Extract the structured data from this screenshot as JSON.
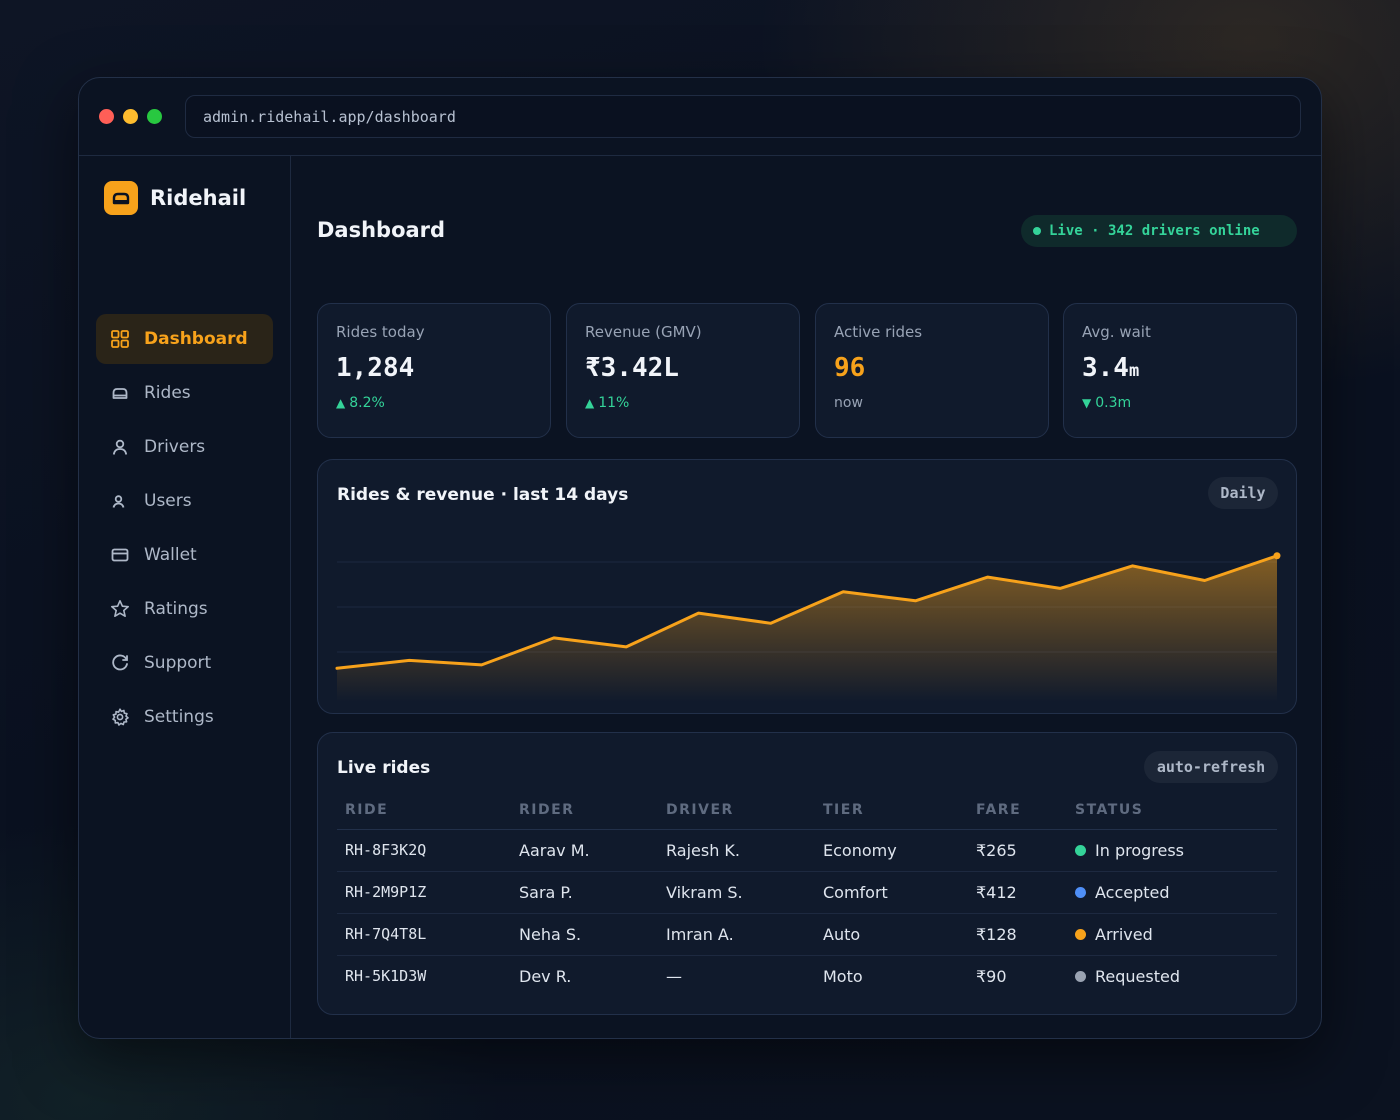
{
  "browser": {
    "url": "admin.ridehail.app/dashboard"
  },
  "brand": {
    "name": "Ridehail"
  },
  "sidebar": {
    "items": [
      {
        "label": "Dashboard",
        "icon": "grid-icon",
        "active": true
      },
      {
        "label": "Rides",
        "icon": "car-icon"
      },
      {
        "label": "Drivers",
        "icon": "user-icon"
      },
      {
        "label": "Users",
        "icon": "users-icon"
      },
      {
        "label": "Wallet",
        "icon": "card-icon"
      },
      {
        "label": "Ratings",
        "icon": "star-icon"
      },
      {
        "label": "Support",
        "icon": "refresh-icon"
      },
      {
        "label": "Settings",
        "icon": "gear-icon"
      }
    ]
  },
  "header": {
    "title": "Dashboard",
    "live_status": "Live · 342 drivers online"
  },
  "stats": [
    {
      "label": "Rides today",
      "value": "1,284",
      "delta": "8.2%",
      "trend": "up"
    },
    {
      "label": "Revenue (GMV)",
      "value": "₹3.42L",
      "delta": "11%",
      "trend": "up"
    },
    {
      "label": "Active rides",
      "value": "96",
      "delta": "now",
      "trend": "none"
    },
    {
      "label": "Avg. wait",
      "value": "3.4",
      "unit": "m",
      "delta": "0.3m",
      "trend": "down"
    }
  ],
  "chart": {
    "title": "Rides & revenue · last 14 days",
    "range_chip": "Daily"
  },
  "chart_data": {
    "type": "area",
    "title": "Rides & revenue · last 14 days",
    "x": [
      1,
      2,
      3,
      4,
      5,
      6,
      7,
      8,
      9,
      10,
      11,
      12,
      13,
      14
    ],
    "series": [
      {
        "values": [
          10,
          17,
          13,
          37,
          29,
          59,
          50,
          78,
          70,
          91,
          81,
          101,
          88,
          110
        ]
      }
    ],
    "ylim": [
      -20,
      140
    ],
    "grid": true,
    "colors": {
      "line": "#f7a21b"
    }
  },
  "live_rides": {
    "title": "Live rides",
    "chip": "auto-refresh",
    "columns": [
      "RIDE",
      "RIDER",
      "DRIVER",
      "TIER",
      "FARE",
      "STATUS"
    ],
    "rows": [
      {
        "ride": "RH-8F3K2Q",
        "rider": "Aarav M.",
        "driver": "Rajesh K.",
        "tier": "Economy",
        "fare": "₹265",
        "status": "In progress",
        "status_color": "#34d399"
      },
      {
        "ride": "RH-2M9P1Z",
        "rider": "Sara P.",
        "driver": "Vikram S.",
        "tier": "Comfort",
        "fare": "₹412",
        "status": "Accepted",
        "status_color": "#4f8ff7"
      },
      {
        "ride": "RH-7Q4T8L",
        "rider": "Neha S.",
        "driver": "Imran A.",
        "tier": "Auto",
        "fare": "₹128",
        "status": "Arrived",
        "status_color": "#f7a21b"
      },
      {
        "ride": "RH-5K1D3W",
        "rider": "Dev R.",
        "driver": "—",
        "tier": "Moto",
        "fare": "₹90",
        "status": "Requested",
        "status_color": "#9aa3b2"
      }
    ]
  },
  "colors": {
    "accent": "#f7a21b",
    "success": "#34d399",
    "info": "#4f8ff7",
    "neutral": "#9aa3b2"
  }
}
